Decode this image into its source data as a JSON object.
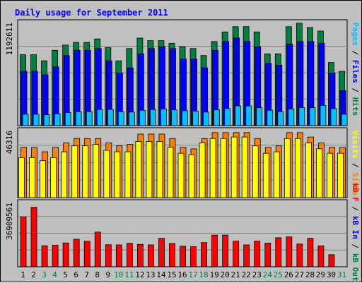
{
  "chart_data": {
    "type": "bar",
    "title": "Daily usage for September 2011",
    "categories": [
      "1",
      "2",
      "3",
      "4",
      "5",
      "6",
      "7",
      "8",
      "9",
      "10",
      "11",
      "12",
      "13",
      "14",
      "15",
      "16",
      "17",
      "18",
      "19",
      "20",
      "21",
      "22",
      "23",
      "24",
      "25",
      "26",
      "27",
      "28",
      "29",
      "30",
      "31"
    ],
    "weekend_days": [
      "3",
      "4",
      "10",
      "11",
      "17",
      "18",
      "24",
      "25",
      "31"
    ],
    "panels": [
      {
        "id": "hits",
        "max_label": "1192611",
        "ylim": [
          0,
          1192611
        ],
        "grid": true,
        "right_label": [
          {
            "text": "Pages",
            "color": "#00c0ff"
          },
          {
            "text": " / ",
            "color": "#000000"
          },
          {
            "text": "Files",
            "color": "#0000ff"
          },
          {
            "text": " / ",
            "color": "#000000"
          },
          {
            "text": "Hits",
            "color": "#008040"
          }
        ],
        "series": [
          {
            "name": "Hits",
            "color": "#008040",
            "values": [
              810000,
              810000,
              740000,
              860000,
              920000,
              950000,
              950000,
              990000,
              890000,
              740000,
              880000,
              1000000,
              970000,
              970000,
              940000,
              900000,
              880000,
              800000,
              960000,
              1070000,
              1130000,
              1130000,
              1070000,
              820000,
              820000,
              1130000,
              1170000,
              1120000,
              1080000,
              720000,
              620000
            ]
          },
          {
            "name": "Files",
            "color": "#0000ff",
            "values": [
              620000,
              620000,
              580000,
              670000,
              800000,
              860000,
              860000,
              880000,
              740000,
              600000,
              660000,
              820000,
              880000,
              900000,
              880000,
              760000,
              760000,
              660000,
              860000,
              960000,
              1000000,
              960000,
              900000,
              710000,
              690000,
              930000,
              960000,
              960000,
              940000,
              600000,
              400000
            ]
          },
          {
            "name": "Pages",
            "color": "#00c0ff",
            "values": [
              130000,
              130000,
              125000,
              135000,
              150000,
              160000,
              160000,
              185000,
              185000,
              160000,
              155000,
              175000,
              185000,
              190000,
              180000,
              170000,
              165000,
              155000,
              180000,
              195000,
              225000,
              225000,
              205000,
              175000,
              160000,
              190000,
              205000,
              205000,
              230000,
              195000,
              130000
            ]
          }
        ]
      },
      {
        "id": "visits",
        "max_label": "46316",
        "ylim": [
          0,
          46316
        ],
        "grid": true,
        "right_label": [
          {
            "text": "Visits",
            "color": "#ffff00"
          },
          {
            "text": " / ",
            "color": "#000000"
          },
          {
            "text": "Sites",
            "color": "#ff8000"
          }
        ],
        "series": [
          {
            "name": "Sites",
            "color": "#ff8000",
            "values": [
              34000,
              34000,
              31000,
              34000,
              37000,
              40000,
              40000,
              40000,
              37000,
              35000,
              36000,
              43000,
              43000,
              43000,
              40000,
              34000,
              33000,
              40000,
              44000,
              44000,
              44000,
              44000,
              40000,
              34000,
              35000,
              44000,
              44000,
              41000,
              37000,
              34000,
              34000
            ]
          },
          {
            "name": "Visits",
            "color": "#ffff00",
            "values": [
              27000,
              27000,
              25000,
              27000,
              31000,
              35000,
              35000,
              36000,
              32000,
              31000,
              31000,
              38000,
              38000,
              38000,
              34000,
              30000,
              29000,
              37000,
              40000,
              40000,
              41000,
              41000,
              35000,
              30000,
              31000,
              40000,
              40000,
              37000,
              33000,
              30000,
              30000
            ]
          }
        ]
      },
      {
        "id": "kbytes",
        "max_label": "36909561",
        "ylim": [
          0,
          36909561
        ],
        "grid": true,
        "right_label": [
          {
            "text": "kB F",
            "color": "#ff0000"
          },
          {
            "text": " / ",
            "color": "#000000"
          },
          {
            "text": "kB In",
            "color": "#0000ff"
          },
          {
            "text": " / ",
            "color": "#000000"
          },
          {
            "text": "kB Out",
            "color": "#008040"
          }
        ],
        "series": [
          {
            "name": "kB F",
            "color": "#ff0000",
            "values": [
              28000000,
              33500000,
              11800000,
              12100000,
              13400000,
              15500000,
              14300000,
              19500000,
              12400000,
              12300000,
              13200000,
              12600000,
              12300000,
              16000000,
              13100000,
              11600000,
              11300000,
              13600000,
              17800000,
              17800000,
              14400000,
              12300000,
              14400000,
              13300000,
              16300000,
              16800000,
              12800000,
              16000000,
              11800000,
              6800000,
              0
            ]
          }
        ]
      }
    ]
  }
}
